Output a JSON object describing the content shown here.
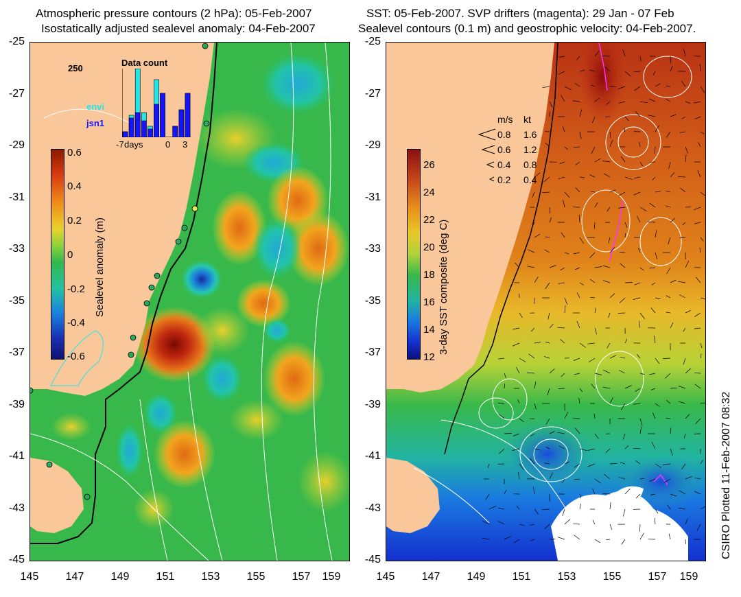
{
  "left_panel": {
    "title_line1": "Atmospheric pressure contours (2 hPa): 05-Feb-2007",
    "title_line2": "Isostatically adjusted sealevel anomaly: 04-Feb-2007",
    "colorbar_label": "Sealevel anomaly (m)",
    "colorbar_ticks": [
      "0.6",
      "0.4",
      "0.2",
      "0",
      "-0.2",
      "-0.4",
      "-0.6"
    ],
    "inset": {
      "title": "Data count",
      "y_label": "250",
      "x_labels": [
        "-7",
        "days",
        "0",
        "3"
      ],
      "legend": [
        {
          "label": "envi",
          "color": "#22e6ea"
        },
        {
          "label": "jsn1",
          "color": "#1414ff"
        }
      ],
      "chart_data": {
        "type": "bar",
        "x": [
          -7,
          -6,
          -5,
          -4,
          -3,
          -2,
          -1,
          0,
          1,
          2,
          3
        ],
        "series": [
          {
            "name": "envi",
            "values": [
              20,
              80,
              250,
              90,
              40,
              210,
              160,
              0,
              0,
              0,
              0
            ]
          },
          {
            "name": "jsn1",
            "values": [
              20,
              70,
              90,
              60,
              30,
              120,
              160,
              0,
              40,
              100,
              160
            ]
          }
        ]
      }
    }
  },
  "right_panel": {
    "title_line1": "SST: 05-Feb-2007. SVP drifters (magenta): 29 Jan - 07 Feb",
    "title_line2": "Sealevel contours (0.1 m) and geostrophic velocity: 04-Feb-2007.",
    "colorbar_label": "3-day SST composite (deg C)",
    "colorbar_ticks": [
      "26",
      "24",
      "22",
      "20",
      "18",
      "16",
      "14",
      "12"
    ],
    "legend_header": [
      "m/s",
      "kt"
    ],
    "legend_rows": [
      {
        "ms": "0.8",
        "kt": "1.6"
      },
      {
        "ms": "0.6",
        "kt": "1.2"
      },
      {
        "ms": "0.4",
        "kt": "0.8"
      },
      {
        "ms": "0.2",
        "kt": "0.4"
      }
    ]
  },
  "axes": {
    "y_ticks": [
      "-25",
      "-27",
      "-29",
      "-31",
      "-33",
      "-35",
      "-37",
      "-39",
      "-41",
      "-43",
      "-45"
    ],
    "x_ticks": [
      "145",
      "147",
      "149",
      "151",
      "153",
      "155",
      "157",
      "159"
    ]
  },
  "credit": "CSIRO Plotted 11-Feb-2007 08:32",
  "colors": {
    "land": "#f9c79a",
    "sst_warm": "#c84a1a",
    "sst_cold": "#0a3cff",
    "anomaly_high": "#8b0a00",
    "anomaly_low": "#101080",
    "background_green": "#32b84a"
  }
}
